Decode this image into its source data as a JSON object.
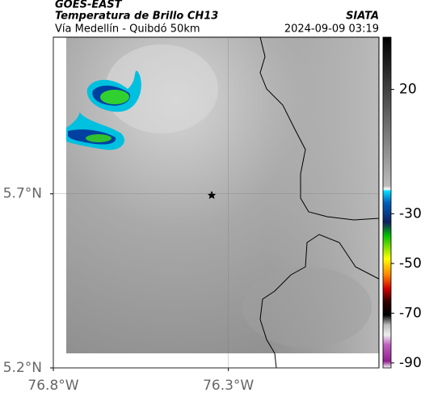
{
  "header": {
    "title": "GOES-EAST",
    "subtitle": "Temperatura de Brillo CH13",
    "location": "Vía Medellín - Quibdó 50km",
    "source": "SIATA",
    "timestamp": "2024-09-09 03:19"
  },
  "map": {
    "xlim": [
      -76.8,
      -75.87
    ],
    "ylim": [
      5.2,
      6.15
    ],
    "xticks": [
      {
        "value": -76.8,
        "label": "76.8°W"
      },
      {
        "value": -76.3,
        "label": "76.3°W"
      }
    ],
    "yticks": [
      {
        "value": 5.2,
        "label": "5.2°N"
      },
      {
        "value": 5.7,
        "label": "5.7°N"
      }
    ],
    "grid": true
  },
  "colorbar": {
    "lim": [
      -92,
      41
    ],
    "ticks": [
      20,
      -30,
      -50,
      -70,
      -90
    ]
  }
}
